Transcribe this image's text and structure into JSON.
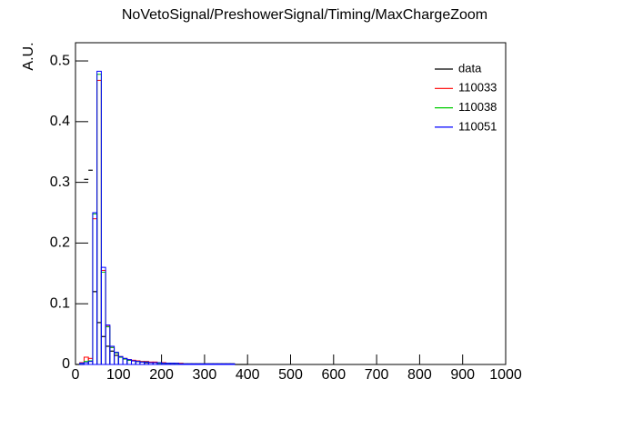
{
  "chart_data": {
    "type": "histogram",
    "title": "NoVetoSignal/PreshowerSignal/Timing/MaxChargeZoom",
    "y_label": "A.U.",
    "bins": [
      0,
      10,
      20,
      30,
      40,
      50,
      60,
      70,
      80,
      90,
      100,
      110,
      120,
      130,
      140,
      150,
      160,
      170,
      180,
      190,
      200,
      210,
      220,
      230,
      240,
      250,
      260,
      270,
      280,
      290,
      300,
      310,
      320,
      330,
      340,
      350,
      360,
      370,
      380,
      390,
      400
    ],
    "series": [
      {
        "name": "data",
        "color": "#000000",
        "style": "points",
        "values": [
          0,
          0,
          0.305,
          0.32,
          0.12,
          0.069,
          0.046,
          0.03,
          0.022,
          0.015,
          0.012,
          0.009,
          0.007,
          0.006,
          0.005,
          0.004,
          0.003,
          0.003,
          0.003,
          0.002,
          0.002,
          0.002,
          0.002,
          0.001,
          0.001,
          0.001,
          0.001,
          0.001,
          0.001,
          0.001,
          0.001,
          0.001,
          0.001,
          0.001,
          0.001,
          0.001,
          0.001,
          0,
          0,
          0
        ]
      },
      {
        "name": "110033",
        "color": "#ff0000",
        "style": "step",
        "values": [
          0,
          0.003,
          0.012,
          0.01,
          0.24,
          0.468,
          0.155,
          0.063,
          0.028,
          0.019,
          0.013,
          0.01,
          0.008,
          0.007,
          0.006,
          0.005,
          0.005,
          0.004,
          0.004,
          0.003,
          0.003,
          0.002,
          0.002,
          0.002,
          0.002,
          0.001,
          0.001,
          0.001,
          0.001,
          0.001,
          0.001,
          0.001,
          0.001,
          0.001,
          0.001,
          0.001,
          0.001,
          0,
          0,
          0
        ]
      },
      {
        "name": "110038",
        "color": "#00cc00",
        "style": "step",
        "values": [
          0,
          0.002,
          0.005,
          0.006,
          0.248,
          0.478,
          0.152,
          0.062,
          0.028,
          0.019,
          0.012,
          0.009,
          0.007,
          0.006,
          0.005,
          0.004,
          0.004,
          0.003,
          0.003,
          0.002,
          0.002,
          0.002,
          0.002,
          0.001,
          0.001,
          0.001,
          0.001,
          0.001,
          0.001,
          0.001,
          0.001,
          0.001,
          0.001,
          0.001,
          0.001,
          0.001,
          0.001,
          0,
          0,
          0
        ]
      },
      {
        "name": "110051",
        "color": "#0000ff",
        "style": "step",
        "values": [
          0,
          0.002,
          0.003,
          0.005,
          0.25,
          0.483,
          0.16,
          0.065,
          0.03,
          0.02,
          0.013,
          0.01,
          0.008,
          0.006,
          0.005,
          0.004,
          0.004,
          0.003,
          0.003,
          0.003,
          0.002,
          0.002,
          0.002,
          0.002,
          0.001,
          0.001,
          0.001,
          0.001,
          0.001,
          0.001,
          0.001,
          0.001,
          0.001,
          0.001,
          0.001,
          0.001,
          0.001,
          0,
          0,
          0
        ]
      }
    ],
    "xlim": [
      0,
      1000
    ],
    "ylim": [
      0,
      0.53
    ],
    "xticks": [
      0,
      100,
      200,
      300,
      400,
      500,
      600,
      700,
      800,
      900,
      1000
    ],
    "yticks": [
      0,
      0.1,
      0.2,
      0.3,
      0.4,
      0.5
    ],
    "legend": "top-right"
  }
}
